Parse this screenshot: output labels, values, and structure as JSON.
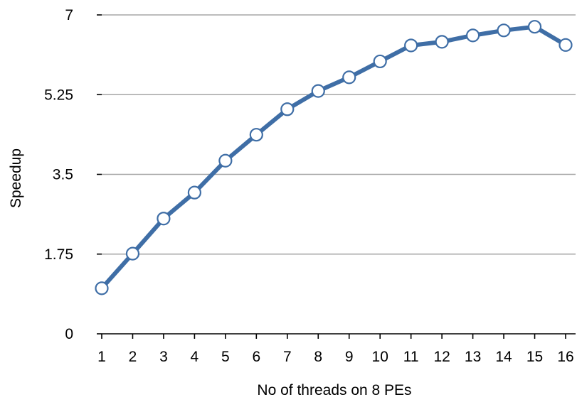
{
  "chart_data": {
    "type": "line",
    "title": "",
    "xlabel": "No of threads on 8 PEs",
    "ylabel": "Speedup",
    "categories": [
      "1",
      "2",
      "3",
      "4",
      "5",
      "6",
      "7",
      "8",
      "9",
      "10",
      "11",
      "12",
      "13",
      "14",
      "15",
      "16"
    ],
    "yticks": [
      0,
      1.75,
      3.5,
      5.25,
      7
    ],
    "ytick_labels": [
      "0",
      "1.75",
      "3.5",
      "5.25",
      "7"
    ],
    "ylim": [
      0,
      7
    ],
    "grid": true,
    "legend": "none",
    "series": [
      {
        "values": [
          1.0,
          1.76,
          2.53,
          3.1,
          3.8,
          4.37,
          4.93,
          5.33,
          5.63,
          5.98,
          6.33,
          6.41,
          6.55,
          6.66,
          6.74,
          6.34
        ],
        "color": "#3f6ea6",
        "marker_fill": "#ffffff"
      }
    ]
  }
}
